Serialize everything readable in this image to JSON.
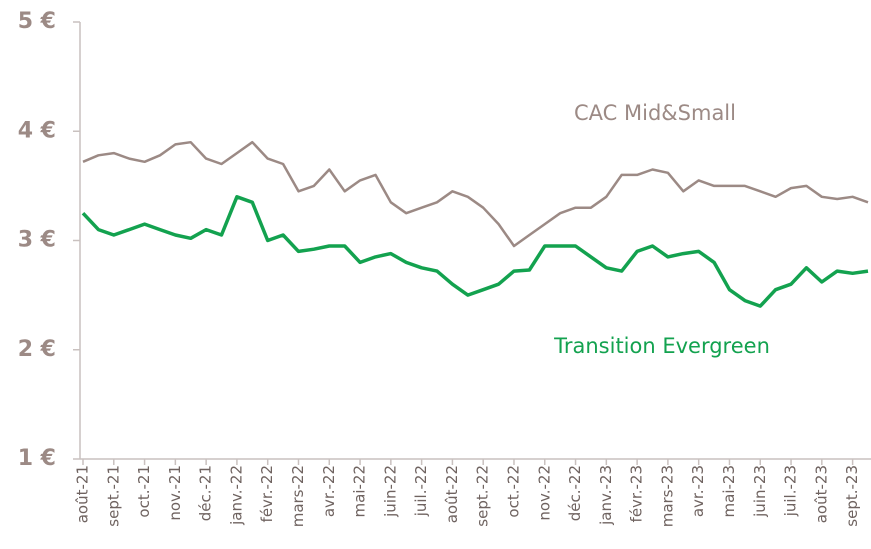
{
  "chart_data": {
    "type": "line",
    "categories": [
      "août-21",
      null,
      "sept.-21",
      null,
      "oct.-21",
      null,
      "nov.-21",
      null,
      "déc.-21",
      null,
      "janv.-22",
      null,
      "févr.-22",
      null,
      "mars-22",
      null,
      "avr.-22",
      null,
      "mai-22",
      null,
      "juin-22",
      null,
      "juil.-22",
      null,
      "août-22",
      null,
      "sept.-22",
      null,
      "oct.-22",
      null,
      "nov.-22",
      null,
      "déc.-22",
      null,
      "janv.-23",
      null,
      "févr.-23",
      null,
      "mars-23",
      null,
      "avr.-23",
      null,
      "mai-23",
      null,
      "juin-23",
      null,
      "juil.-23",
      null,
      "août-23",
      null,
      "sept.-23",
      null
    ],
    "series": [
      {
        "name": "CAC Mid&Small",
        "color": "#9c8a85",
        "values": [
          3.72,
          3.78,
          3.8,
          3.75,
          3.72,
          3.78,
          3.88,
          3.9,
          3.75,
          3.7,
          3.8,
          3.9,
          3.75,
          3.7,
          3.45,
          3.5,
          3.65,
          3.45,
          3.55,
          3.6,
          3.35,
          3.25,
          3.3,
          3.35,
          3.45,
          3.4,
          3.3,
          3.15,
          2.95,
          3.05,
          3.15,
          3.25,
          3.3,
          3.3,
          3.4,
          3.6,
          3.6,
          3.65,
          3.62,
          3.45,
          3.55,
          3.5,
          3.5,
          3.5,
          3.45,
          3.4,
          3.48,
          3.5,
          3.4,
          3.38,
          3.4,
          3.35
        ]
      },
      {
        "name": "Transition Evergreen",
        "color": "#13a24f",
        "values": [
          3.25,
          3.1,
          3.05,
          3.1,
          3.15,
          3.1,
          3.05,
          3.02,
          3.1,
          3.05,
          3.4,
          3.35,
          3.0,
          3.05,
          2.9,
          2.92,
          2.95,
          2.95,
          2.8,
          2.85,
          2.88,
          2.8,
          2.75,
          2.72,
          2.6,
          2.5,
          2.55,
          2.6,
          2.72,
          2.73,
          2.95,
          2.95,
          2.95,
          2.85,
          2.75,
          2.72,
          2.9,
          2.95,
          2.85,
          2.88,
          2.9,
          2.8,
          2.55,
          2.45,
          2.4,
          2.55,
          2.6,
          2.75,
          2.62,
          2.72,
          2.7,
          2.72
        ]
      }
    ],
    "ylim": [
      1,
      5
    ],
    "yticks": [
      {
        "value": 1,
        "label": "1 €"
      },
      {
        "value": 2,
        "label": "2 €"
      },
      {
        "value": 3,
        "label": "3 €"
      },
      {
        "value": 4,
        "label": "4 €"
      },
      {
        "value": 5,
        "label": "5 €"
      }
    ]
  }
}
